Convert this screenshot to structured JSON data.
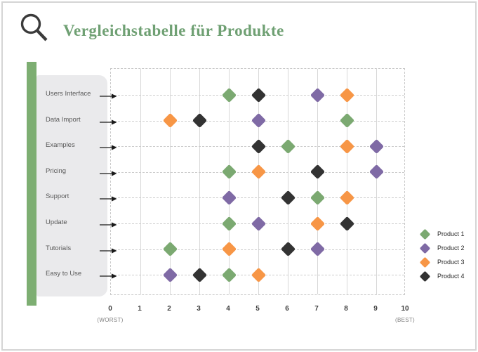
{
  "header": {
    "title": "Vergleichstabelle für Produkte",
    "title_color": "#6fa073",
    "icon": "magnifier-icon",
    "icon_color": "#3b3b3b"
  },
  "sidebar": {
    "accent_bar_color": "#7dae72",
    "panel_color": "#eaeaec"
  },
  "chart_data": {
    "type": "scatter",
    "marker": "diamond",
    "categories": [
      "Users Interface",
      "Data Import",
      "Examples",
      "Pricing",
      "Support",
      "Update",
      "Tutorials",
      "Easy to Use"
    ],
    "series": [
      {
        "name": "Product 1",
        "color": "#7ba971",
        "values": [
          4,
          8,
          6,
          4,
          7,
          4,
          2,
          4
        ]
      },
      {
        "name": "Product 2",
        "color": "#7f6aa5",
        "values": [
          7,
          5,
          9,
          9,
          4,
          5,
          7,
          2
        ]
      },
      {
        "name": "Product 3",
        "color": "#f79646",
        "values": [
          8,
          2,
          8,
          5,
          8,
          7,
          4,
          5
        ]
      },
      {
        "name": "Product 4",
        "color": "#333333",
        "values": [
          5,
          3,
          5,
          7,
          6,
          8,
          6,
          3
        ]
      }
    ],
    "x_ticks": [
      "0",
      "1",
      "2",
      "3",
      "4",
      "5",
      "6",
      "7",
      "8",
      "9",
      "10"
    ],
    "xlim": [
      0,
      10
    ],
    "x_min_label": "(WORST)",
    "x_max_label": "(BEST)",
    "grid": "on",
    "gridline_color": "#d8d8d8",
    "legend_position": "right",
    "arrow_color": "#1a1a1a"
  }
}
